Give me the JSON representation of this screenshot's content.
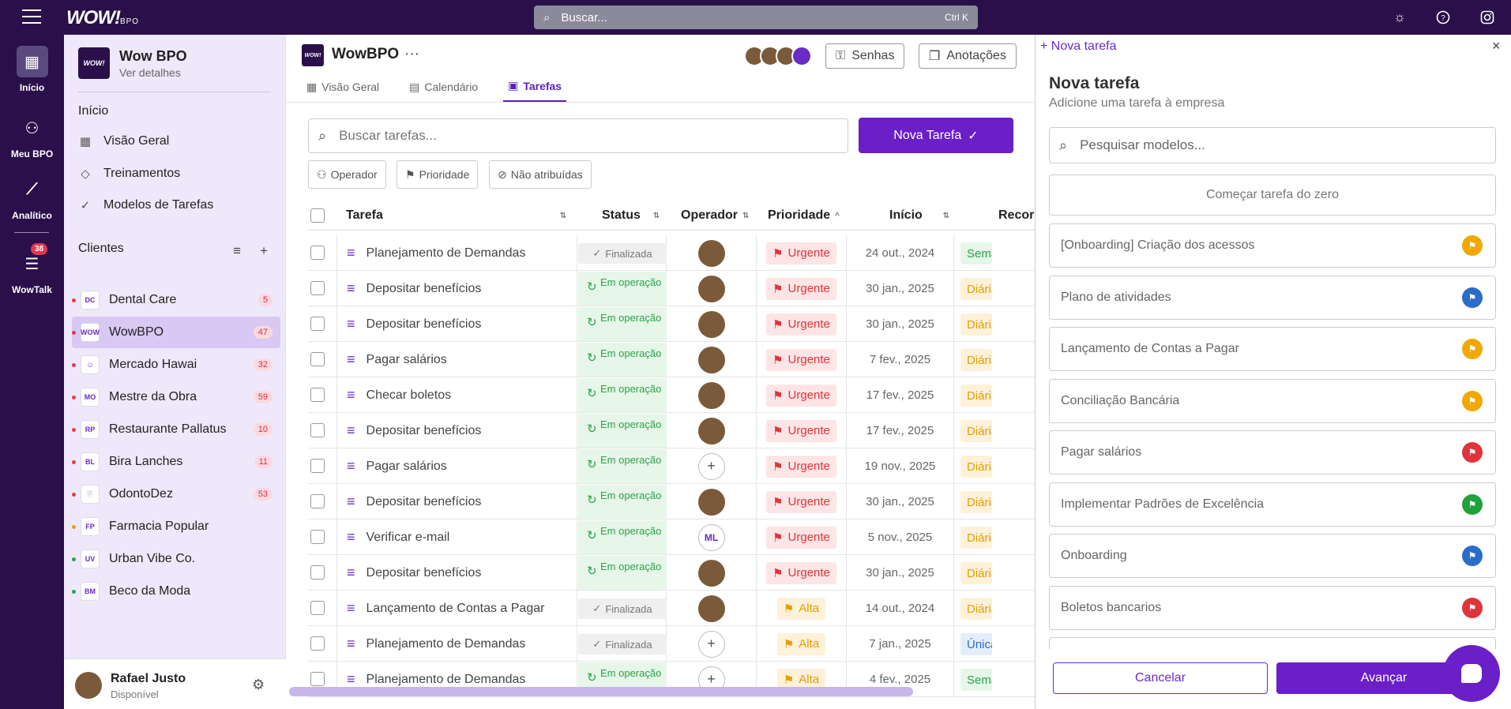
{
  "topbar": {
    "logo": "WOW!",
    "logo_sub": "BPO",
    "search_placeholder": "Buscar...",
    "search_shortcut": "Ctrl K",
    "icons": [
      "sun-icon",
      "help-icon",
      "instagram-icon"
    ]
  },
  "rail": {
    "items": [
      {
        "label": "Início",
        "icon": "dashboard-icon"
      },
      {
        "label": "Meu BPO",
        "icon": "users-settings-icon"
      },
      {
        "label": "Analítico",
        "icon": "chart-icon"
      },
      {
        "label": "WowTalk",
        "icon": "chat-list-icon",
        "badge": "38"
      }
    ]
  },
  "sidebar": {
    "company_logo": "WOW!",
    "company_name": "Wow BPO",
    "company_sub": "Ver detalhes",
    "home_title": "Início",
    "links": [
      {
        "label": "Visão Geral",
        "icon": "grid-icon"
      },
      {
        "label": "Treinamentos",
        "icon": "graduation-cap-icon"
      },
      {
        "label": "Modelos de Tarefas",
        "icon": "check-circle-icon"
      }
    ],
    "clients_title": "Clientes",
    "clients": [
      {
        "name": "Dental Care",
        "abbr": "DC",
        "count": "5",
        "dot": "#e53950"
      },
      {
        "name": "WowBPO",
        "abbr": "WOW",
        "count": "47",
        "dot": "#e53950"
      },
      {
        "name": "Mercado Hawai",
        "abbr": "☺",
        "count": "32",
        "dot": "#e53950"
      },
      {
        "name": "Mestre da Obra",
        "abbr": "MO",
        "count": "59",
        "dot": "#e53950"
      },
      {
        "name": "Restaurante Pallatus",
        "abbr": "RP",
        "count": "10",
        "dot": "#e53950"
      },
      {
        "name": "Bira Lanches",
        "abbr": "BL",
        "count": "11",
        "dot": "#e53950"
      },
      {
        "name": "OdontoDez",
        "abbr": "🦷",
        "count": "53",
        "dot": "#e53950"
      },
      {
        "name": "Farmacia Popular",
        "abbr": "FP",
        "count": "",
        "dot": "#e6a100"
      },
      {
        "name": "Urban Vibe Co.",
        "abbr": "UV",
        "count": "",
        "dot": "#2ca24a"
      },
      {
        "name": "Beco da Moda",
        "abbr": "BM",
        "count": "",
        "dot": "#2ca24a"
      }
    ],
    "user_name": "Rafael Justo",
    "user_status": "Disponível"
  },
  "main": {
    "company_logo": "WOW!",
    "title": "WowBPO",
    "more": "···",
    "btn_senhas": "Senhas",
    "btn_anotacoes": "Anotações",
    "tabs": [
      {
        "label": "Visão Geral",
        "icon": "grid-icon"
      },
      {
        "label": "Calendário",
        "icon": "calendar-icon"
      },
      {
        "label": "Tarefas",
        "icon": "list-icon"
      }
    ],
    "search_placeholder": "Buscar tarefas...",
    "new_task": "Nova Tarefa",
    "filters": [
      "Operador",
      "Prioridade",
      "Não atribuídas"
    ],
    "columns": [
      "Tarefa",
      "Status",
      "Operador",
      "Prioridade",
      "Início",
      "Recorr"
    ],
    "rows": [
      {
        "task": "Planejamento de Demandas",
        "status": "Finalizada",
        "op": "avatar",
        "pri": "Urgente",
        "date": "24 out., 2024",
        "rec": "Semanal",
        "rec_type": "sem"
      },
      {
        "task": "Depositar benefícios",
        "status": "Em operação",
        "op": "avatar",
        "pri": "Urgente",
        "date": "30 jan., 2025",
        "rec": "Diária",
        "rec_type": "dia"
      },
      {
        "task": "Depositar benefícios",
        "status": "Em operação",
        "op": "avatar",
        "pri": "Urgente",
        "date": "30 jan., 2025",
        "rec": "Diária",
        "rec_type": "dia"
      },
      {
        "task": "Pagar salários",
        "status": "Em operação",
        "op": "avatar",
        "pri": "Urgente",
        "date": "7 fev., 2025",
        "rec": "Diária",
        "rec_type": "dia"
      },
      {
        "task": "Checar boletos",
        "status": "Em operação",
        "op": "avatar",
        "pri": "Urgente",
        "date": "17 fev., 2025",
        "rec": "Diária",
        "rec_type": "dia"
      },
      {
        "task": "Depositar benefícios",
        "status": "Em operação",
        "op": "avatar",
        "pri": "Urgente",
        "date": "17 fev., 2025",
        "rec": "Diária",
        "rec_type": "dia"
      },
      {
        "task": "Pagar salários",
        "status": "Em operação",
        "op": "plus",
        "pri": "Urgente",
        "date": "19 nov., 2025",
        "rec": "Diária",
        "rec_type": "dia"
      },
      {
        "task": "Depositar benefícios",
        "status": "Em operação",
        "op": "avatar",
        "pri": "Urgente",
        "date": "30 jan., 2025",
        "rec": "Diária",
        "rec_type": "dia"
      },
      {
        "task": "Verificar e-mail",
        "status": "Em operação",
        "op": "ML",
        "pri": "Urgente",
        "date": "5 nov., 2025",
        "rec": "Diária",
        "rec_type": "dia"
      },
      {
        "task": "Depositar benefícios",
        "status": "Em operação",
        "op": "avatar",
        "pri": "Urgente",
        "date": "30 jan., 2025",
        "rec": "Diária",
        "rec_type": "dia"
      },
      {
        "task": "Lançamento de Contas a Pagar",
        "status": "Finalizada",
        "op": "avatar",
        "pri": "Alta",
        "date": "14 out., 2024",
        "rec": "Diária",
        "rec_type": "dia"
      },
      {
        "task": "Planejamento de Demandas",
        "status": "Finalizada",
        "op": "plus",
        "pri": "Alta",
        "date": "7 jan., 2025",
        "rec": "Única",
        "rec_type": "uni"
      },
      {
        "task": "Planejamento de Demandas",
        "status": "Em operação",
        "op": "plus",
        "pri": "Alta",
        "date": "4 fev., 2025",
        "rec": "Semanal",
        "rec_type": "sem"
      }
    ]
  },
  "panel": {
    "header": "Nova tarefa",
    "title": "Nova tarefa",
    "subtitle": "Adicione uma tarefa à empresa",
    "search_placeholder": "Pesquisar modelos...",
    "start_zero": "Começar tarefa do zero",
    "templates": [
      {
        "label": "[Onboarding] Criação dos acessos",
        "color": "#f0a800"
      },
      {
        "label": "Plano de atividades",
        "color": "#2a6cc7"
      },
      {
        "label": "Lançamento de Contas a Pagar",
        "color": "#f0a800"
      },
      {
        "label": "Conciliação Bancária",
        "color": "#f0a800"
      },
      {
        "label": "Pagar salários",
        "color": "#e0343b"
      },
      {
        "label": "Implementar Padrões de Excelência",
        "color": "#1fa23a"
      },
      {
        "label": "Onboarding",
        "color": "#2a6cc7"
      },
      {
        "label": "Boletos bancarios",
        "color": "#e0343b"
      }
    ],
    "cancel": "Cancelar",
    "next": "Avançar"
  },
  "colors": {
    "brand": "#2a0f4a",
    "accent": "#6a1fc7"
  }
}
